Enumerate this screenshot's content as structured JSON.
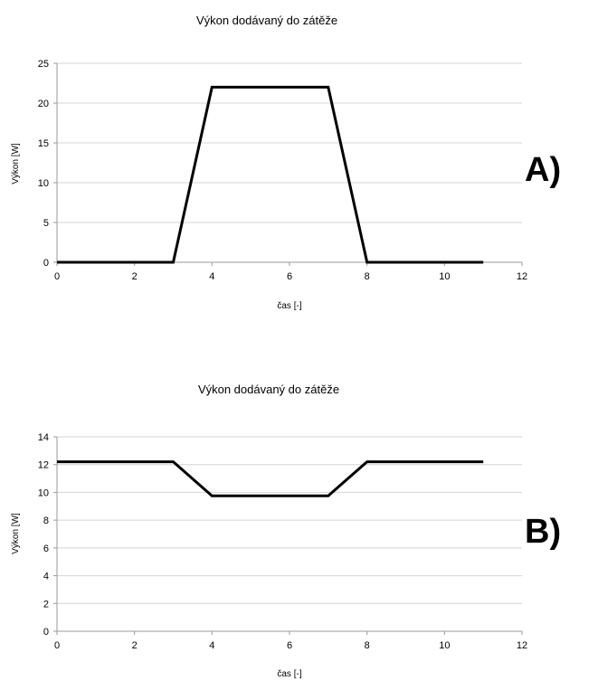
{
  "chart_data": [
    {
      "type": "line",
      "panel_label": "A)",
      "title": "Výkon dodávaný do zátěže",
      "xlabel": "čas [-]",
      "ylabel": "Výkon [W]",
      "xlim": [
        0,
        12
      ],
      "ylim": [
        0,
        25
      ],
      "xticks": [
        0,
        2,
        4,
        6,
        8,
        10,
        12
      ],
      "yticks": [
        0,
        5,
        10,
        15,
        20,
        25
      ],
      "grid": true,
      "series": [
        {
          "x": [
            0,
            3,
            4,
            7,
            8,
            11
          ],
          "y": [
            0,
            0,
            22,
            22,
            0,
            0
          ],
          "color": "#000000"
        }
      ]
    },
    {
      "type": "line",
      "panel_label": "B)",
      "title": "Výkon dodávaný do zátěže",
      "xlabel": "čas [-]",
      "ylabel": "Výkon [W]",
      "xlim": [
        0,
        12
      ],
      "ylim": [
        0,
        14
      ],
      "xticks": [
        0,
        2,
        4,
        6,
        8,
        10,
        12
      ],
      "yticks": [
        0,
        2,
        4,
        6,
        8,
        10,
        12,
        14
      ],
      "grid": true,
      "series": [
        {
          "x": [
            0,
            3,
            4,
            7,
            8,
            11
          ],
          "y": [
            12.2,
            12.2,
            9.75,
            9.75,
            12.2,
            12.2
          ],
          "color": "#000000"
        }
      ]
    }
  ]
}
